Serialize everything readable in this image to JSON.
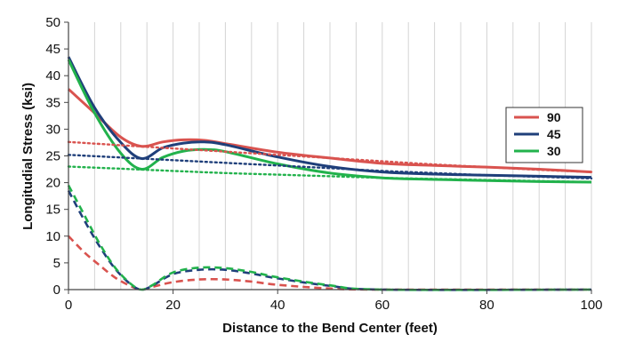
{
  "chart_data": {
    "type": "line",
    "title": "",
    "xlabel": "Distance to the Bend Center (feet)",
    "ylabel": "Longitudial Stress (ksi)",
    "xlim": [
      0,
      100
    ],
    "ylim": [
      0,
      50
    ],
    "xticks": [
      "0",
      "20",
      "40",
      "60",
      "80",
      "100"
    ],
    "yticks": [
      "0",
      "5",
      "10",
      "15",
      "20",
      "25",
      "30",
      "35",
      "40",
      "45",
      "50"
    ],
    "grid": "vertical",
    "legend_position": "right",
    "legend": [
      "90",
      "45",
      "30"
    ],
    "series": [
      {
        "name": "90",
        "group": "90",
        "style": "solid",
        "color": "#d9534f",
        "x": [
          0,
          5,
          10,
          14,
          18,
          22,
          26,
          30,
          40,
          50,
          60,
          70,
          80,
          90,
          100
        ],
        "y": [
          37.5,
          33,
          28.5,
          26.8,
          27.6,
          28,
          27.9,
          27.3,
          25.7,
          24.6,
          23.6,
          23.2,
          22.9,
          22.5,
          22
        ]
      },
      {
        "name": "45",
        "group": "45",
        "style": "solid",
        "color": "#1f3f7a",
        "x": [
          0,
          5,
          10,
          14,
          18,
          22,
          26,
          30,
          40,
          50,
          60,
          70,
          80,
          90,
          100
        ],
        "y": [
          43.5,
          34,
          27.5,
          24.5,
          26.5,
          27.4,
          27.6,
          27.1,
          24.8,
          23,
          22,
          21.6,
          21.4,
          21.2,
          21
        ]
      },
      {
        "name": "30",
        "group": "30",
        "style": "solid",
        "color": "#22b24c",
        "x": [
          0,
          5,
          10,
          14,
          18,
          22,
          26,
          30,
          40,
          50,
          60,
          70,
          80,
          90,
          100
        ],
        "y": [
          43,
          33,
          25.5,
          22.5,
          24.7,
          25.9,
          26.2,
          25.8,
          23.5,
          21.8,
          20.9,
          20.6,
          20.4,
          20.2,
          20.1
        ]
      },
      {
        "group": "90",
        "style": "dotted",
        "color": "#d9534f",
        "x": [
          0,
          10,
          20,
          30,
          40,
          50,
          60,
          70,
          80,
          90,
          100
        ],
        "y": [
          27.6,
          27,
          26.4,
          25.8,
          25.2,
          24.6,
          24,
          23.4,
          22.9,
          22.4,
          22
        ]
      },
      {
        "group": "45",
        "style": "dotted",
        "color": "#1f3f7a",
        "x": [
          0,
          10,
          20,
          30,
          40,
          50,
          60,
          70,
          80,
          90,
          100
        ],
        "y": [
          25.2,
          24.7,
          24.2,
          23.7,
          23.2,
          22.7,
          22.2,
          21.8,
          21.4,
          21.1,
          20.8
        ]
      },
      {
        "group": "30",
        "style": "dotted",
        "color": "#22b24c",
        "x": [
          0,
          10,
          20,
          30,
          40,
          50,
          60,
          70,
          80,
          90,
          100
        ],
        "y": [
          23,
          22.6,
          22.2,
          21.8,
          21.5,
          21.2,
          20.9,
          20.7,
          20.5,
          20.3,
          20.1
        ]
      },
      {
        "group": "90",
        "style": "dashed",
        "color": "#d9534f",
        "x": [
          0,
          3,
          6,
          9,
          12,
          14,
          16,
          20,
          25,
          30,
          35,
          40,
          50,
          60,
          100
        ],
        "y": [
          10,
          7,
          4.5,
          2.2,
          0.6,
          0,
          0.5,
          1.4,
          1.9,
          1.9,
          1.5,
          0.9,
          0.2,
          0,
          0
        ]
      },
      {
        "group": "45",
        "style": "dashed",
        "color": "#1f3f7a",
        "x": [
          0,
          3,
          6,
          9,
          12,
          14,
          16,
          20,
          25,
          30,
          35,
          40,
          50,
          60,
          100
        ],
        "y": [
          18.5,
          13,
          8,
          3.8,
          0.9,
          0,
          0.7,
          2.9,
          3.7,
          3.7,
          3,
          2.1,
          0.7,
          0,
          0
        ]
      },
      {
        "group": "30",
        "style": "dashed",
        "color": "#22b24c",
        "x": [
          0,
          3,
          6,
          9,
          12,
          14,
          16,
          20,
          25,
          30,
          35,
          40,
          50,
          60,
          100
        ],
        "y": [
          19.5,
          14,
          8.5,
          4,
          1,
          0,
          0.8,
          3.2,
          4.1,
          4,
          3.3,
          2.3,
          0.8,
          0,
          0
        ]
      }
    ]
  }
}
